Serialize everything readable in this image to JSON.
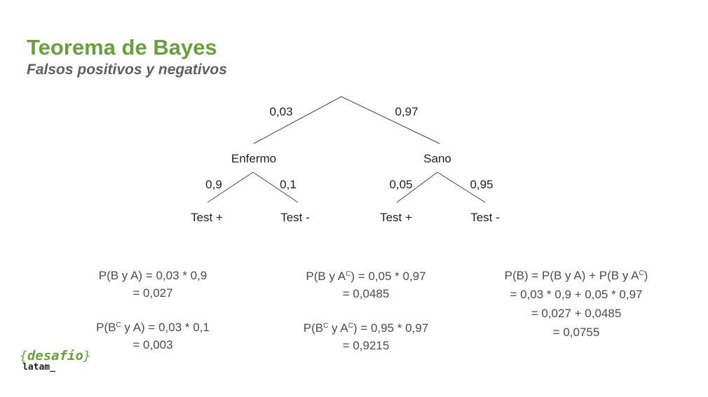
{
  "header": {
    "title": "Teorema de Bayes",
    "subtitle": "Falsos positivos y negativos"
  },
  "tree": {
    "root_branches": {
      "left_prob": "0,03",
      "right_prob": "0,97"
    },
    "nodes": {
      "left": "Enfermo",
      "right": "Sano"
    },
    "enfermo_branches": {
      "left_prob": "0,9",
      "right_prob": "0,1"
    },
    "sano_branches": {
      "left_prob": "0,05",
      "right_prob": "0,95"
    },
    "leaves": [
      "Test +",
      "Test -",
      "Test +",
      "Test -"
    ]
  },
  "formulas": {
    "col1": {
      "block1": {
        "line1": "P(B y A) = 0,03 * 0,9",
        "line2": "= 0,027"
      },
      "block2": {
        "line1_pre": "P(B",
        "line1_sup": "C",
        "line1_post": " y A) = 0,03 * 0,1",
        "line2": "= 0,003"
      }
    },
    "col2": {
      "block1": {
        "line1_pre": "P(B y A",
        "line1_sup": "C",
        "line1_post": ") = 0,05 * 0,97",
        "line2": "= 0,0485"
      },
      "block2": {
        "line1_pre": "P(B",
        "line1_sup": "C",
        "line1_mid": " y A",
        "line1_sup2": "C",
        "line1_post": ") = 0,95 * 0,97",
        "line2": "= 0,9215"
      }
    },
    "col3": {
      "line1_pre": "P(B) = P(B y A) + P(B y A",
      "line1_sup": "C",
      "line1_post": ")",
      "line2": "= 0,03 * 0,9 + 0,05 * 0,97",
      "line3": "= 0,027 + 0,0485",
      "line4": "= 0,0755"
    }
  },
  "logo": {
    "open_brace": "{",
    "word": "desafío",
    "close_brace": "}",
    "sub": "latam_"
  },
  "colors": {
    "accent_green": "#6a9f3f",
    "subtitle_gray": "#5f5f5f",
    "formula_gray": "#4a4a4a"
  }
}
